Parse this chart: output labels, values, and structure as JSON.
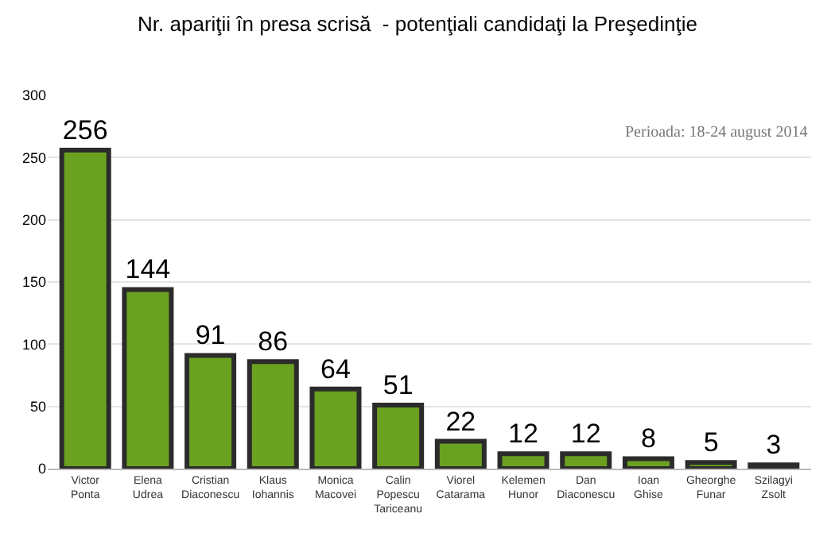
{
  "chart_data": {
    "type": "bar",
    "title": "Nr. apariţii în presa scrisă  - potenţiali candidaţi la Preşedinţie",
    "categories": [
      "Victor Ponta",
      "Elena Udrea",
      "Cristian Diaconescu",
      "Klaus Iohannis",
      "Monica Macovei",
      "Calin Popescu Tariceanu",
      "Viorel Catarama",
      "Kelemen Hunor",
      "Dan Diaconescu",
      "Ioan Ghise",
      "Gheorghe Funar",
      "Szilagyi Zsolt"
    ],
    "values": [
      256,
      144,
      91,
      86,
      64,
      51,
      22,
      12,
      12,
      8,
      5,
      3
    ],
    "color": "#6aa121",
    "ylim": [
      0,
      300
    ],
    "yticks": [
      0,
      50,
      100,
      150,
      200,
      250,
      300
    ],
    "grid": "y",
    "data_labels": true,
    "annotations": [
      "Perioada: 18-24 august 2014"
    ]
  }
}
